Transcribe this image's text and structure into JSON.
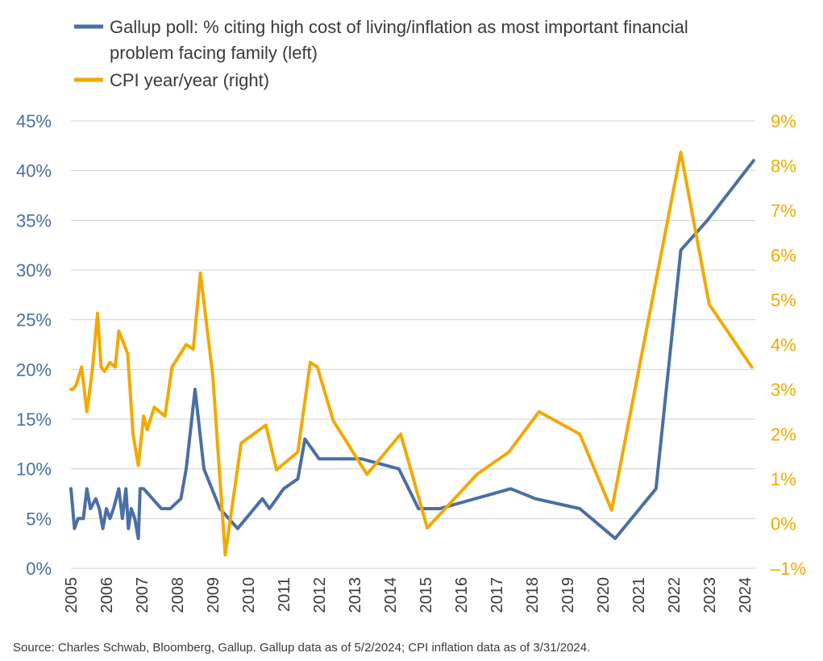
{
  "chart_data": {
    "type": "line",
    "title": "",
    "xlabel": "",
    "x_ticks": [
      "2005",
      "2006",
      "2007",
      "2008",
      "2009",
      "2010",
      "2011",
      "2012",
      "2013",
      "2014",
      "2015",
      "2016",
      "2017",
      "2018",
      "2019",
      "2020",
      "2021",
      "2022",
      "2023",
      "2024"
    ],
    "x_range": [
      2005.0,
      2024.3
    ],
    "left_axis": {
      "ylim": [
        0,
        45
      ],
      "ticks": [
        0,
        5,
        10,
        15,
        20,
        25,
        30,
        35,
        40,
        45
      ],
      "tick_labels": [
        "0%",
        "5%",
        "10%",
        "15%",
        "20%",
        "25%",
        "30%",
        "35%",
        "40%",
        "45%"
      ]
    },
    "right_axis": {
      "ylim": [
        -1,
        9
      ],
      "ticks": [
        -1,
        0,
        1,
        2,
        3,
        4,
        5,
        6,
        7,
        8,
        9
      ],
      "tick_labels": [
        "–1%",
        "0%",
        "1%",
        "2%",
        "3%",
        "4%",
        "5%",
        "6%",
        "7%",
        "8%",
        "9%"
      ]
    },
    "grid": true,
    "legend_position": "top-left",
    "series": [
      {
        "name": "Gallup poll: % citing high cost of living/inflation as most important financial problem facing family (left)",
        "axis": "left",
        "color": "#4a6fa5",
        "x": [
          2005.0,
          2005.1,
          2005.2,
          2005.35,
          2005.45,
          2005.55,
          2005.7,
          2005.8,
          2005.9,
          2006.0,
          2006.1,
          2006.2,
          2006.35,
          2006.45,
          2006.55,
          2006.62,
          2006.7,
          2006.8,
          2006.9,
          2006.95,
          2007.05,
          2007.3,
          2007.55,
          2007.8,
          2008.1,
          2008.25,
          2008.5,
          2008.75,
          2009.2,
          2009.7,
          2010.4,
          2010.6,
          2011.0,
          2011.4,
          2011.6,
          2012.0,
          2012.5,
          2013.2,
          2014.25,
          2014.8,
          2015.4,
          2017.4,
          2018.1,
          2019.35,
          2020.35,
          2021.5,
          2022.2,
          2022.95,
          2024.25
        ],
        "values": [
          8,
          4,
          5,
          5,
          8,
          6,
          7,
          6,
          4,
          6,
          5,
          6,
          8,
          5,
          8,
          4,
          6,
          5,
          3,
          8,
          8,
          7,
          6,
          6,
          7,
          10,
          18,
          10,
          6,
          4,
          7,
          6,
          8,
          9,
          13,
          11,
          11,
          11,
          10,
          6,
          6,
          8,
          7,
          6,
          3,
          8,
          32,
          35,
          41
        ]
      },
      {
        "name": "CPI year/year (right)",
        "axis": "right",
        "color": "#f2a900",
        "x": [
          2005.0,
          2005.05,
          2005.15,
          2005.3,
          2005.45,
          2005.6,
          2005.75,
          2005.85,
          2005.95,
          2006.1,
          2006.25,
          2006.35,
          2006.45,
          2006.6,
          2006.75,
          2006.9,
          2007.05,
          2007.15,
          2007.35,
          2007.65,
          2007.85,
          2008.25,
          2008.45,
          2008.65,
          2009.0,
          2009.35,
          2009.8,
          2010.5,
          2010.8,
          2011.4,
          2011.75,
          2011.95,
          2012.4,
          2013.35,
          2014.3,
          2015.05,
          2016.45,
          2017.35,
          2018.2,
          2019.35,
          2020.25,
          2022.2,
          2023.0,
          2024.2
        ],
        "values": [
          3.0,
          3.0,
          3.1,
          3.5,
          2.5,
          3.4,
          4.7,
          3.5,
          3.4,
          3.6,
          3.5,
          4.3,
          4.1,
          3.8,
          2.0,
          1.3,
          2.4,
          2.1,
          2.6,
          2.4,
          3.5,
          4.0,
          3.9,
          5.6,
          3.3,
          -0.7,
          1.8,
          2.2,
          1.2,
          1.6,
          3.6,
          3.5,
          2.3,
          1.1,
          2.0,
          -0.1,
          1.1,
          1.6,
          2.5,
          2.0,
          0.3,
          8.3,
          4.9,
          3.5
        ]
      }
    ],
    "source": "Source: Charles Schwab, Bloomberg, Gallup. Gallup data as of 5/2/2024; CPI inflation data as of 3/31/2024."
  }
}
